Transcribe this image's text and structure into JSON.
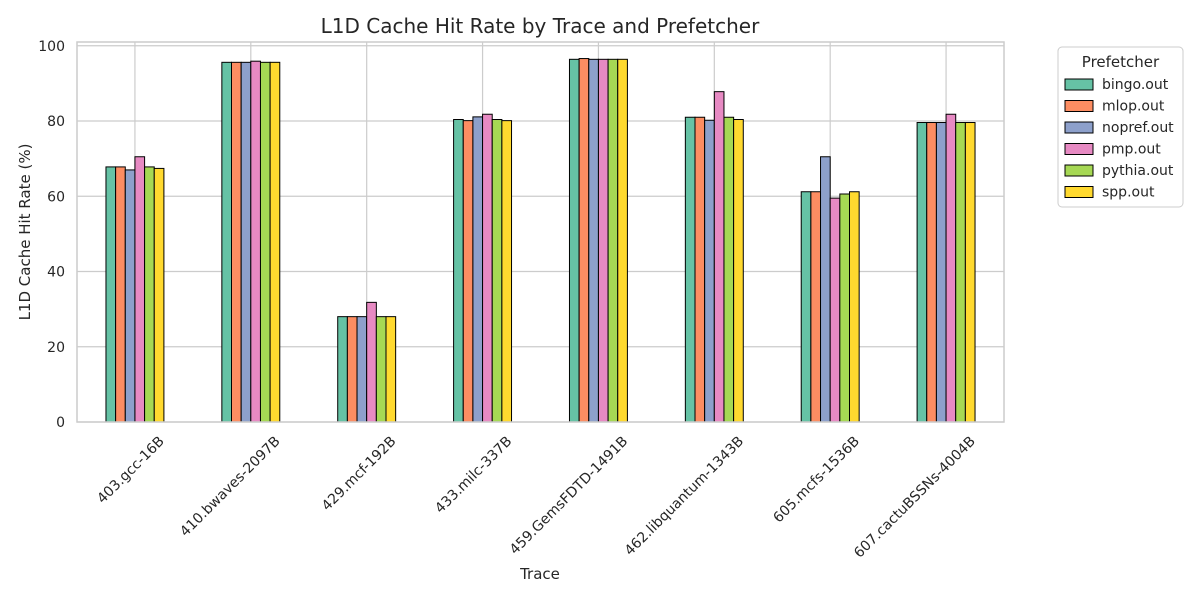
{
  "chart_data": {
    "type": "bar",
    "title": "L1D Cache Hit Rate by Trace and Prefetcher",
    "xlabel": "Trace",
    "ylabel": "L1D Cache Hit Rate (%)",
    "ylim": [
      0,
      101
    ],
    "yticks": [
      0,
      20,
      40,
      60,
      80,
      100
    ],
    "grid": true,
    "legend": {
      "title": "Prefetcher",
      "placement": "outside-top-right"
    },
    "categories": [
      "403.gcc-16B",
      "410.bwaves-2097B",
      "429.mcf-192B",
      "433.milc-337B",
      "459.GemsFDTD-1491B",
      "462.libquantum-1343B",
      "605.mcfs-1536B",
      "607.cactuBSSNs-4004B"
    ],
    "series": [
      {
        "name": "bingo.out",
        "color": "#66c2a5",
        "values": [
          67.8,
          95.6,
          28.0,
          80.4,
          96.4,
          81.0,
          61.2,
          79.6
        ]
      },
      {
        "name": "mlop.out",
        "color": "#fc8d62",
        "values": [
          67.8,
          95.6,
          28.0,
          80.1,
          96.6,
          81.0,
          61.2,
          79.6
        ]
      },
      {
        "name": "nopref.out",
        "color": "#8da0cb",
        "values": [
          67.0,
          95.6,
          28.0,
          81.1,
          96.4,
          80.2,
          70.5,
          79.6
        ]
      },
      {
        "name": "pmp.out",
        "color": "#e78ac3",
        "values": [
          70.5,
          95.9,
          31.8,
          81.8,
          96.4,
          87.8,
          59.5,
          81.8
        ]
      },
      {
        "name": "pythia.out",
        "color": "#a6d854",
        "values": [
          67.8,
          95.6,
          28.0,
          80.4,
          96.4,
          81.0,
          60.6,
          79.6
        ]
      },
      {
        "name": "spp.out",
        "color": "#ffd92f",
        "values": [
          67.4,
          95.6,
          28.0,
          80.1,
          96.4,
          80.4,
          61.2,
          79.6
        ]
      }
    ]
  }
}
